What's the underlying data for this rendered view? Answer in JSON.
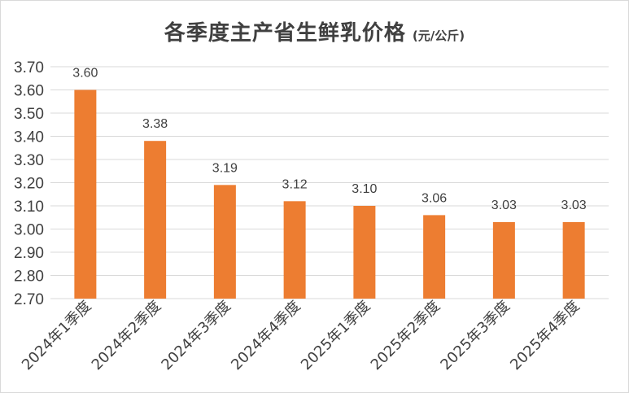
{
  "chart_data": {
    "type": "bar",
    "title": "各季度主产省生鲜乳价格",
    "unit": "(元/公斤)",
    "xlabel": "",
    "ylabel": "",
    "categories": [
      "2024年1季度",
      "2024年2季度",
      "2024年3季度",
      "2024年4季度",
      "2025年1季度",
      "2025年2季度",
      "2025年3季度",
      "2025年4季度"
    ],
    "values": [
      3.6,
      3.38,
      3.19,
      3.12,
      3.1,
      3.06,
      3.03,
      3.03
    ],
    "data_labels": [
      "3.60",
      "3.38",
      "3.19",
      "3.12",
      "3.10",
      "3.06",
      "3.03",
      "3.03"
    ],
    "ylim": [
      2.7,
      3.7
    ],
    "yticks": [
      "2.70",
      "2.80",
      "2.90",
      "3.00",
      "3.10",
      "3.20",
      "3.30",
      "3.40",
      "3.50",
      "3.60",
      "3.70"
    ],
    "grid": true,
    "legend": "none",
    "bar_color": "#ED7D31",
    "grid_color": "#d9d9d9"
  }
}
